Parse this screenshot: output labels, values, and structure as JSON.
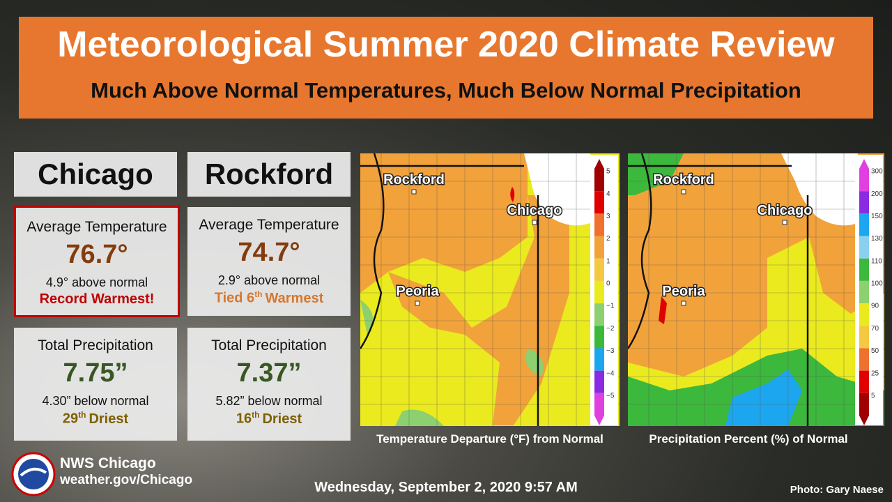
{
  "header": {
    "title": "Meteorological Summer 2020 Climate Review",
    "subtitle": "Much Above Normal Temperatures, Much Below Normal Precipitation"
  },
  "stations": [
    {
      "name": "Chicago",
      "temperature": {
        "label": "Average Temperature",
        "value": "76.7°",
        "departure": "4.9° above normal",
        "rank": [
          "Record Warmest!"
        ]
      },
      "precipitation": {
        "label": "Total Precipitation",
        "value": "7.75”",
        "departure": "4.30” below normal",
        "rank": [
          "29",
          "th",
          "Driest"
        ]
      }
    },
    {
      "name": "Rockford",
      "temperature": {
        "label": "Average Temperature",
        "value": "74.7°",
        "departure": "2.9° above normal",
        "rank": [
          "Tied 6",
          "th",
          "Warmest"
        ]
      },
      "precipitation": {
        "label": "Total Precipitation",
        "value": "7.37”",
        "departure": "5.82” below normal",
        "rank": [
          "16",
          "th",
          "Driest"
        ]
      }
    }
  ],
  "maps": [
    {
      "caption": "Temperature Departure (°F) from Normal",
      "cities": [
        "Rockford",
        "Chicago",
        "Peoria"
      ],
      "legend": [
        "5",
        "4",
        "3",
        "2",
        "1",
        "0",
        "−1",
        "−2",
        "−3",
        "−4",
        "−5"
      ]
    },
    {
      "caption": "Precipitation Percent (%) of Normal",
      "cities": [
        "Rockford",
        "Chicago",
        "Peoria"
      ],
      "legend": [
        "300",
        "200",
        "150",
        "130",
        "110",
        "100",
        "90",
        "70",
        "50",
        "25",
        "5"
      ]
    }
  ],
  "footer": {
    "office": "NWS Chicago",
    "url": "weather.gov/Chicago",
    "date": "Wednesday, September 2, 2020 9:57 AM",
    "credit": "Photo: Gary Naese"
  }
}
